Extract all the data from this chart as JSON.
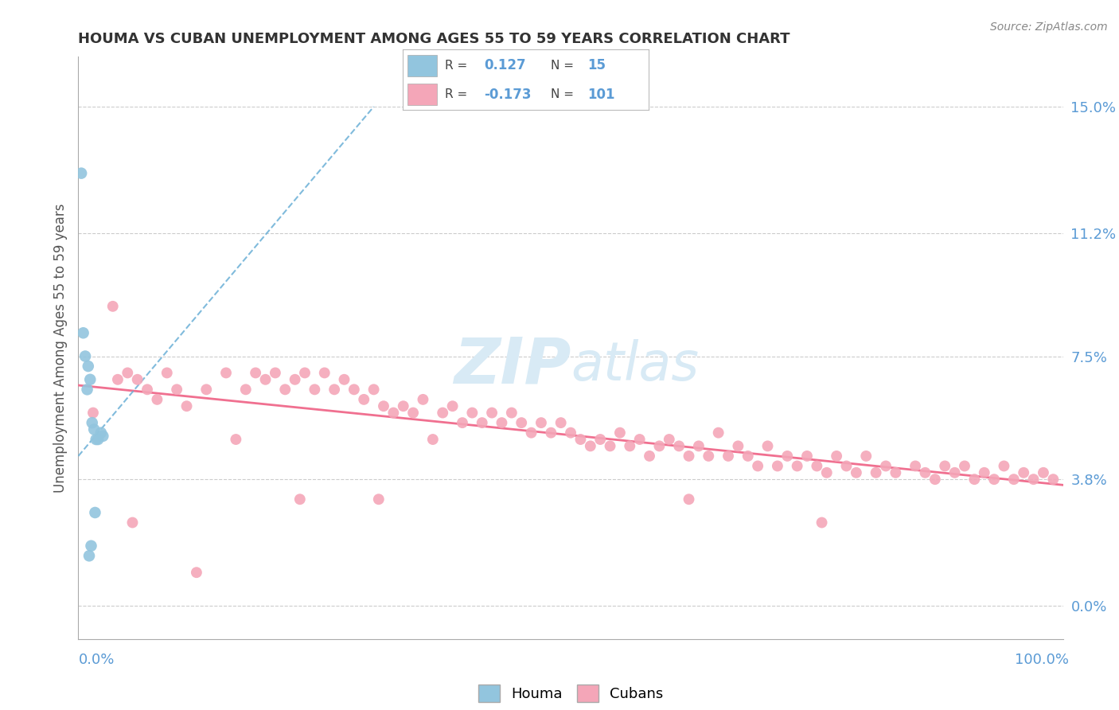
{
  "title": "HOUMA VS CUBAN UNEMPLOYMENT AMONG AGES 55 TO 59 YEARS CORRELATION CHART",
  "source": "Source: ZipAtlas.com",
  "ylabel": "Unemployment Among Ages 55 to 59 years",
  "yticks": [
    0.0,
    3.8,
    7.5,
    11.2,
    15.0
  ],
  "xlim": [
    0,
    100
  ],
  "ylim": [
    -1.0,
    16.5
  ],
  "houma_R": 0.127,
  "houma_N": 15,
  "cuban_R": -0.173,
  "cuban_N": 101,
  "houma_color": "#92C5DE",
  "cuban_color": "#F4A6B8",
  "houma_line_color": "#6AAFD6",
  "cuban_line_color": "#F07090",
  "watermark_color": "#D8EAF5",
  "background_color": "#FFFFFF",
  "houma_x": [
    0.3,
    0.5,
    0.7,
    0.9,
    1.0,
    1.2,
    1.4,
    1.6,
    1.8,
    2.0,
    2.3,
    2.5,
    1.1,
    1.3,
    1.7
  ],
  "houma_y": [
    13.0,
    8.2,
    7.5,
    6.5,
    7.2,
    6.8,
    5.5,
    5.3,
    5.0,
    5.0,
    5.2,
    5.1,
    1.5,
    1.8,
    2.8
  ],
  "cuban_x": [
    1.5,
    3.5,
    4.0,
    5.0,
    6.0,
    7.0,
    8.0,
    9.0,
    10.0,
    11.0,
    13.0,
    15.0,
    17.0,
    18.0,
    19.0,
    20.0,
    21.0,
    22.0,
    23.0,
    24.0,
    25.0,
    26.0,
    27.0,
    28.0,
    29.0,
    30.0,
    31.0,
    32.0,
    33.0,
    34.0,
    35.0,
    37.0,
    38.0,
    39.0,
    40.0,
    41.0,
    42.0,
    43.0,
    44.0,
    45.0,
    46.0,
    47.0,
    48.0,
    49.0,
    50.0,
    51.0,
    52.0,
    53.0,
    54.0,
    55.0,
    56.0,
    57.0,
    58.0,
    59.0,
    60.0,
    61.0,
    62.0,
    63.0,
    64.0,
    65.0,
    66.0,
    67.0,
    68.0,
    69.0,
    70.0,
    71.0,
    72.0,
    73.0,
    74.0,
    75.0,
    76.0,
    77.0,
    78.0,
    79.0,
    80.0,
    81.0,
    82.0,
    83.0,
    85.0,
    86.0,
    87.0,
    88.0,
    89.0,
    90.0,
    91.0,
    92.0,
    93.0,
    94.0,
    95.0,
    96.0,
    97.0,
    98.0,
    99.0,
    36.0,
    5.5,
    12.0,
    16.0,
    22.5,
    30.5,
    62.0,
    75.5
  ],
  "cuban_y": [
    5.8,
    9.0,
    6.8,
    7.0,
    6.8,
    6.5,
    6.2,
    7.0,
    6.5,
    6.0,
    6.5,
    7.0,
    6.5,
    7.0,
    6.8,
    7.0,
    6.5,
    6.8,
    7.0,
    6.5,
    7.0,
    6.5,
    6.8,
    6.5,
    6.2,
    6.5,
    6.0,
    5.8,
    6.0,
    5.8,
    6.2,
    5.8,
    6.0,
    5.5,
    5.8,
    5.5,
    5.8,
    5.5,
    5.8,
    5.5,
    5.2,
    5.5,
    5.2,
    5.5,
    5.2,
    5.0,
    4.8,
    5.0,
    4.8,
    5.2,
    4.8,
    5.0,
    4.5,
    4.8,
    5.0,
    4.8,
    4.5,
    4.8,
    4.5,
    5.2,
    4.5,
    4.8,
    4.5,
    4.2,
    4.8,
    4.2,
    4.5,
    4.2,
    4.5,
    4.2,
    4.0,
    4.5,
    4.2,
    4.0,
    4.5,
    4.0,
    4.2,
    4.0,
    4.2,
    4.0,
    3.8,
    4.2,
    4.0,
    4.2,
    3.8,
    4.0,
    3.8,
    4.2,
    3.8,
    4.0,
    3.8,
    4.0,
    3.8,
    5.0,
    2.5,
    1.0,
    5.0,
    3.2,
    3.2,
    3.2,
    2.5
  ]
}
